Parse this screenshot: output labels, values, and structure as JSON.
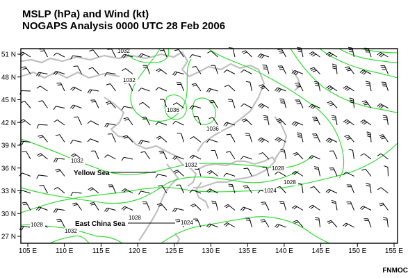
{
  "header": {
    "title_line1": "MSLP (hPa) and Wind (kt)",
    "title_line2": "NOGAPS Analysis 0000 UTC 28 Feb 2006"
  },
  "credit": "FNMOC",
  "map": {
    "x_ticks": [
      "105 E",
      "110 E",
      "115 E",
      "120 E",
      "125 E",
      "130 E",
      "135 E",
      "140 E",
      "145 E",
      "150 E",
      "155 E"
    ],
    "y_ticks": [
      "51 N",
      "48 N",
      "45 N",
      "42 N",
      "39 N",
      "36 N",
      "33 N",
      "30 N",
      "27 N"
    ],
    "isobar_labels": [
      "1032",
      "1032",
      "1036",
      "1036",
      "1032",
      "1032",
      "1028",
      "1024",
      "1028",
      "1028",
      "1032",
      "1028",
      "1024"
    ],
    "annotations": [
      "Yellow Sea",
      "East China Sea"
    ],
    "colors": {
      "isobar": "#33dd33",
      "coastline": "#c0c0c0",
      "barb": "#000000",
      "frame": "#000000"
    }
  }
}
